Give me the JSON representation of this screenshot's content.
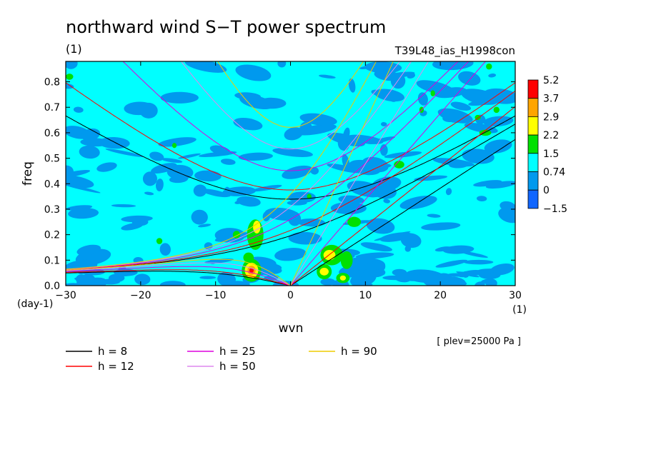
{
  "chart_data": {
    "type": "heatmap",
    "title": "northward wind S−T power spectrum",
    "title_units": "(1)",
    "run_label": "T39L48_ias_H1998con",
    "xlabel": "wvn",
    "x_units": "(1)",
    "ylabel": "freq",
    "y_units": "(day-1)",
    "xlim": [
      -30,
      30
    ],
    "ylim": [
      0,
      0.88
    ],
    "x_ticks": [
      -30,
      -20,
      -10,
      0,
      10,
      20,
      30
    ],
    "x_tick_labels": [
      "−30",
      "−20",
      "−10",
      "0",
      "10",
      "20",
      "30"
    ],
    "y_ticks": [
      0,
      0.1,
      0.2,
      0.3,
      0.4,
      0.5,
      0.6,
      0.7,
      0.8
    ],
    "y_tick_labels": [
      "0.0",
      "0.1",
      "0.2",
      "0.3",
      "0.4",
      "0.5",
      "0.6",
      "0.7",
      "0.8"
    ],
    "colorbar": {
      "labels": [
        "5.2",
        "3.7",
        "2.9",
        "2.2",
        "1.5",
        "0.74",
        "0",
        "−1.5"
      ],
      "colors": [
        "#ff0000",
        "#ffa500",
        "#ffff00",
        "#00e000",
        "#00ffff",
        "#0099ee",
        "#1166ff"
      ]
    },
    "field_colors": {
      "background": "#00ffff",
      "low": "#0099ee",
      "high": "#00e000",
      "higher": "#ffff00",
      "highest": "#ffa500",
      "peak": "#ff0000"
    },
    "annotation": "[ plev=25000 Pa ]",
    "legend": [
      {
        "label": "h =  8",
        "color": "#000000",
        "h": 8
      },
      {
        "label": "h = 12",
        "color": "#ff0000",
        "h": 12
      },
      {
        "label": "h = 25",
        "color": "#dd00dd",
        "h": 25
      },
      {
        "label": "h = 50",
        "color": "#dd88ee",
        "h": 50
      },
      {
        "label": "h = 90",
        "color": "#eecc00",
        "h": 90
      }
    ],
    "blobs": [
      {
        "x": -5.2,
        "y": 0.06,
        "level": "high",
        "rx": 1.3,
        "ry": 0.045
      },
      {
        "x": -5.2,
        "y": 0.06,
        "level": "higher",
        "rx": 0.9,
        "ry": 0.03
      },
      {
        "x": -5.2,
        "y": 0.06,
        "level": "highest",
        "rx": 0.55,
        "ry": 0.018
      },
      {
        "x": -5.2,
        "y": 0.06,
        "level": "peak",
        "rx": 0.3,
        "ry": 0.009
      },
      {
        "x": -4.7,
        "y": 0.2,
        "level": "high",
        "rx": 1.1,
        "ry": 0.06
      },
      {
        "x": -4.5,
        "y": 0.23,
        "level": "higher",
        "rx": 0.5,
        "ry": 0.025
      },
      {
        "x": -5.6,
        "y": 0.11,
        "level": "high",
        "rx": 0.7,
        "ry": 0.02
      },
      {
        "x": -7.2,
        "y": 0.2,
        "level": "high",
        "rx": 0.5,
        "ry": 0.015
      },
      {
        "x": 5.5,
        "y": 0.12,
        "level": "high",
        "rx": 1.5,
        "ry": 0.04
      },
      {
        "x": 5.2,
        "y": 0.12,
        "level": "higher",
        "rx": 0.8,
        "ry": 0.02
      },
      {
        "x": 4.5,
        "y": 0.055,
        "level": "high",
        "rx": 1.0,
        "ry": 0.03
      },
      {
        "x": 4.5,
        "y": 0.055,
        "level": "higher",
        "rx": 0.6,
        "ry": 0.015
      },
      {
        "x": 7.0,
        "y": 0.03,
        "level": "high",
        "rx": 0.9,
        "ry": 0.02
      },
      {
        "x": 7.0,
        "y": 0.03,
        "level": "higher",
        "rx": 0.4,
        "ry": 0.01
      },
      {
        "x": 7.5,
        "y": 0.1,
        "level": "high",
        "rx": 0.8,
        "ry": 0.035
      },
      {
        "x": 8.5,
        "y": 0.25,
        "level": "high",
        "rx": 0.9,
        "ry": 0.02
      },
      {
        "x": 14.5,
        "y": 0.475,
        "level": "high",
        "rx": 0.7,
        "ry": 0.015
      },
      {
        "x": 17.5,
        "y": 0.69,
        "level": "high",
        "rx": 0.3,
        "ry": 0.012
      },
      {
        "x": 19.0,
        "y": 0.755,
        "level": "high",
        "rx": 0.3,
        "ry": 0.012
      },
      {
        "x": 26.0,
        "y": 0.6,
        "level": "high",
        "rx": 0.8,
        "ry": 0.012
      },
      {
        "x": 25.0,
        "y": 0.66,
        "level": "high",
        "rx": 0.4,
        "ry": 0.01
      },
      {
        "x": 26.5,
        "y": 0.86,
        "level": "high",
        "rx": 0.4,
        "ry": 0.012
      },
      {
        "x": 27.5,
        "y": 0.69,
        "level": "high",
        "rx": 0.4,
        "ry": 0.012
      },
      {
        "x": -29.5,
        "y": 0.82,
        "level": "high",
        "rx": 0.5,
        "ry": 0.012
      },
      {
        "x": -17.5,
        "y": 0.175,
        "level": "high",
        "rx": 0.4,
        "ry": 0.012
      },
      {
        "x": -15.5,
        "y": 0.55,
        "level": "high",
        "rx": 0.3,
        "ry": 0.01
      },
      {
        "x": 2.5,
        "y": 0.35,
        "level": "high",
        "rx": 0.3,
        "ry": 0.01
      }
    ]
  }
}
